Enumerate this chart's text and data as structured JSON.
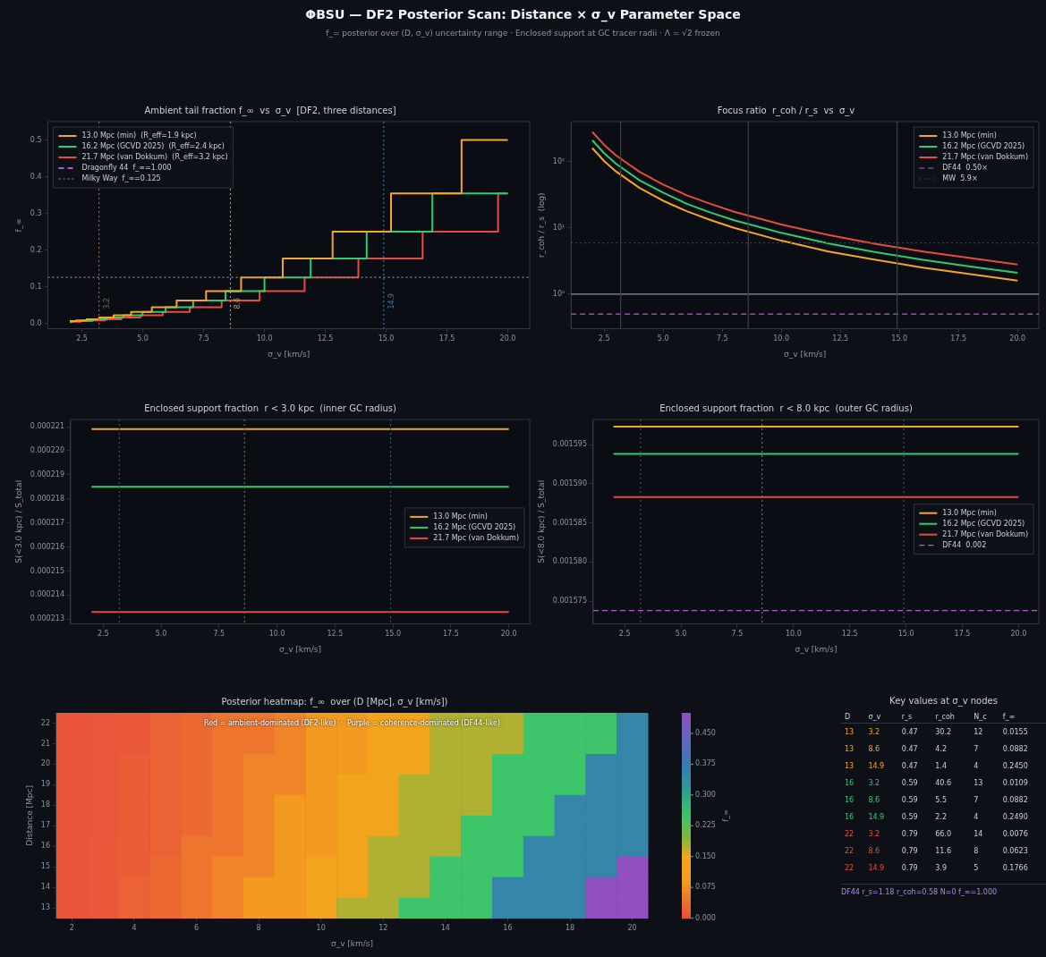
{
  "chart_data": [
    {
      "type": "other",
      "title": "ΦBSU — DF2 Posterior Scan: Distance × σ_v Parameter Space",
      "subtitle": "f_= posterior over (D, σ_v) uncertainty range  ·  Enclosed support at GC tracer radii  ·  Λ = √2 frozen"
    },
    {
      "type": "step",
      "title": "Ambient tail fraction f_∞  vs  σ_v  [DF2, three distances]",
      "xlabel": "σ_v [km/s]",
      "ylabel": "f_∞",
      "xlim": [
        1.1,
        20.9
      ],
      "xticks": [
        2.5,
        {
          "value": 5,
          "label": "5.0"
        },
        7.5,
        {
          "value": 10,
          "label": "10.0"
        },
        12.5,
        {
          "value": 15,
          "label": "15.0"
        },
        17.5,
        {
          "value": 20,
          "label": "20.0"
        }
      ],
      "ylim": [
        -0.015,
        0.55
      ],
      "yticks": [
        {
          "value": 0,
          "label": "0.0"
        },
        0.1,
        0.2,
        0.3,
        0.4,
        0.5
      ],
      "legend": "top left",
      "series": [
        {
          "name": "13.0 Mpc (min)  (R_eff=1.9 kpc)",
          "color": "#f5a623",
          "x": [
            2,
            2.26,
            2.69,
            3.2,
            3.8,
            4.52,
            5.37,
            6.39,
            7.6,
            9.04,
            10.75,
            12.8,
            15.2,
            18.1,
            20
          ],
          "values": [
            0.006,
            0.008,
            0.011,
            0.016,
            0.022,
            0.031,
            0.044,
            0.062,
            0.088,
            0.125,
            0.177,
            0.25,
            0.354,
            0.5,
            0.5
          ]
        },
        {
          "name": "16.2 Mpc (GCVD 2025)  (R_eff=2.4 kpc)",
          "color": "#2ecc71",
          "x": [
            2,
            2.1,
            2.49,
            2.97,
            3.53,
            4.2,
            4.99,
            5.94,
            7.07,
            8.4,
            10.0,
            11.9,
            14.2,
            16.9,
            20
          ],
          "values": [
            0.004,
            0.006,
            0.008,
            0.011,
            0.016,
            0.022,
            0.031,
            0.044,
            0.062,
            0.088,
            0.125,
            0.177,
            0.25,
            0.354,
            0.354
          ]
        },
        {
          "name": "21.7 Mpc (van Dokkum)  (R_eff=3.2 kpc)",
          "color": "#e74c3c",
          "x": [
            2,
            2.06,
            2.45,
            2.91,
            3.46,
            4.12,
            4.9,
            5.82,
            6.93,
            8.24,
            9.8,
            11.65,
            13.86,
            16.5,
            19.6,
            20
          ],
          "values": [
            0.003,
            0.004,
            0.006,
            0.008,
            0.011,
            0.016,
            0.022,
            0.031,
            0.044,
            0.062,
            0.088,
            0.125,
            0.177,
            0.25,
            0.354,
            0.354
          ]
        },
        {
          "name": "Dragonfly 44  f_∞=1.000",
          "color": "#b05fc8",
          "line_style": "dashed"
        }
      ],
      "ref_lines": [
        {
          "axis": "y",
          "value": 0.125,
          "label": "Milky Way  f_∞=0.125",
          "color": "#8b949e",
          "line_style": "dotted"
        },
        {
          "axis": "x",
          "value": 3.2,
          "label": "3.2",
          "color": "#8a6a5a",
          "line_style": "dotted"
        },
        {
          "axis": "x",
          "value": 8.6,
          "label": "8.6",
          "color": "#c89a40",
          "line_style": "dotted"
        },
        {
          "axis": "x",
          "value": 14.9,
          "label": "14.9",
          "color": "#3b7ca8",
          "line_style": "dotted"
        }
      ]
    },
    {
      "type": "line",
      "title": "Focus ratio  r_coh / r_s  vs  σ_v",
      "xlabel": "σ_v [km/s]",
      "ylabel": "r_coh / r_s  (log)",
      "log": "y",
      "xlim": [
        1.1,
        20.9
      ],
      "xticks": [
        2.5,
        {
          "value": 5,
          "label": "5.0"
        },
        7.5,
        {
          "value": 10,
          "label": "10.0"
        },
        12.5,
        {
          "value": 15,
          "label": "15.0"
        },
        17.5,
        {
          "value": 20,
          "label": "20.0"
        }
      ],
      "ylim": [
        0.3,
        400
      ],
      "yticks": [
        {
          "value": 1,
          "label": "10⁰"
        },
        {
          "value": 10,
          "label": "10¹"
        },
        {
          "value": 100,
          "label": "10²"
        }
      ],
      "legend": "top right",
      "x": [
        2,
        2.5,
        3,
        4,
        5,
        6,
        7,
        8,
        10,
        12,
        14,
        16,
        18,
        20
      ],
      "series": [
        {
          "name": "13.0 Mpc (min)",
          "color": "#f5a623",
          "values": [
            160,
            102,
            71,
            40,
            25.6,
            17.8,
            13.1,
            10,
            6.4,
            4.4,
            3.3,
            2.5,
            2.0,
            1.6
          ]
        },
        {
          "name": "16.2 Mpc (GCVD 2025)",
          "color": "#2ecc71",
          "values": [
            210,
            134,
            93,
            52,
            34,
            23,
            17,
            13,
            8.4,
            5.8,
            4.3,
            3.3,
            2.6,
            2.1
          ]
        },
        {
          "name": "21.7 Mpc (van Dokkum)",
          "color": "#e74c3c",
          "values": [
            280,
            179,
            124,
            70,
            45,
            31,
            23,
            17.5,
            11.2,
            7.8,
            5.7,
            4.4,
            3.5,
            2.8
          ]
        }
      ],
      "ref_lines": [
        {
          "axis": "y",
          "value": 0.5,
          "label": "DF44  0.50×",
          "color": "#b05fc8",
          "line_style": "dashed"
        },
        {
          "axis": "y",
          "value": 5.9,
          "label": "MW  5.9×",
          "color": "#3a424c",
          "line_style": "dotted"
        },
        {
          "axis": "y",
          "value": 1,
          "color": "#8b949e",
          "line_style": "solid"
        },
        {
          "axis": "x",
          "value": 3.2,
          "color": "#3a424c",
          "line_style": "solid"
        },
        {
          "axis": "x",
          "value": 8.6,
          "color": "#3a424c",
          "line_style": "solid"
        },
        {
          "axis": "x",
          "value": 14.9,
          "color": "#3a424c",
          "line_style": "solid"
        }
      ]
    },
    {
      "type": "line",
      "title": "Enclosed support fraction  r < 3.0 kpc  (inner GC radius)",
      "xlabel": "σ_v [km/s]",
      "ylabel": "S(<3.0 kpc) / S_total",
      "xlim": [
        1.1,
        20.9
      ],
      "xticks": [
        2.5,
        {
          "value": 5,
          "label": "5.0"
        },
        7.5,
        {
          "value": 10,
          "label": "10.0"
        },
        12.5,
        {
          "value": 15,
          "label": "15.0"
        },
        17.5,
        {
          "value": 20,
          "label": "20.0"
        }
      ],
      "ylim": [
        0.0002128,
        0.0002213
      ],
      "yticks": [
        0.000213,
        0.000214,
        0.000215,
        0.000216,
        0.000217,
        0.000218,
        0.000219,
        {
          "value": 0.00022,
          "label": "0.000220"
        },
        0.000221
      ],
      "legend": "center right",
      "x": [
        2,
        20
      ],
      "series": [
        {
          "name": "13.0 Mpc (min)",
          "color": "#f5a623",
          "values": [
            0.0002209,
            0.0002209
          ]
        },
        {
          "name": "16.2 Mpc (GCVD 2025)",
          "color": "#2ecc71",
          "values": [
            0.0002185,
            0.0002185
          ]
        },
        {
          "name": "21.7 Mpc (van Dokkum)",
          "color": "#e74c3c",
          "values": [
            0.0002133,
            0.0002133
          ]
        }
      ],
      "ref_lines": [
        {
          "axis": "x",
          "value": 3.2,
          "color": "#5a4a44",
          "line_style": "dotted"
        },
        {
          "axis": "x",
          "value": 8.6,
          "color": "#8a6a30",
          "line_style": "dotted"
        },
        {
          "axis": "x",
          "value": 14.9,
          "color": "#2e5a7a",
          "line_style": "dotted"
        }
      ]
    },
    {
      "type": "line",
      "title": "Enclosed support fraction  r < 8.0 kpc  (outer GC radius)",
      "xlabel": "σ_v [km/s]",
      "ylabel": "S(<8.0 kpc) / S_total",
      "xlim": [
        1.1,
        20.9
      ],
      "xticks": [
        2.5,
        {
          "value": 5,
          "label": "5.0"
        },
        7.5,
        {
          "value": 10,
          "label": "10.0"
        },
        12.5,
        {
          "value": 15,
          "label": "15.0"
        },
        17.5,
        {
          "value": 20,
          "label": "20.0"
        }
      ],
      "ylim": [
        0.0015721,
        0.0015982
      ],
      "yticks": [
        0.001575,
        {
          "value": 0.00158,
          "label": "0.001580"
        },
        0.001585,
        {
          "value": 0.00159,
          "label": "0.001590"
        },
        0.001595
      ],
      "legend": "center right",
      "x": [
        2,
        20
      ],
      "series": [
        {
          "name": "13.0 Mpc (min)",
          "color": "#f5a623",
          "values": [
            0.0015973,
            0.0015973
          ]
        },
        {
          "name": "16.2 Mpc (GCVD 2025)",
          "color": "#2ecc71",
          "values": [
            0.0015938,
            0.0015938
          ]
        },
        {
          "name": "21.7 Mpc (van Dokkum)",
          "color": "#e74c3c",
          "values": [
            0.0015883,
            0.0015883
          ]
        }
      ],
      "ref_lines": [
        {
          "axis": "y",
          "value": 0.0015738,
          "label": "DF44  0.002",
          "color": "#b05fc8",
          "line_style": "dashed"
        },
        {
          "axis": "x",
          "value": 3.2,
          "color": "#5a4a44",
          "line_style": "dotted"
        },
        {
          "axis": "x",
          "value": 8.6,
          "color": "#8a6a30",
          "line_style": "dotted"
        },
        {
          "axis": "x",
          "value": 14.9,
          "color": "#2e5a7a",
          "line_style": "dotted"
        }
      ]
    },
    {
      "type": "heatmap",
      "title": "Posterior heatmap: f_∞  over (D [Mpc], σ_v [km/s])",
      "xlabel": "σ_v [km/s]",
      "ylabel": "Distance [Mpc]",
      "clabel": "f_∞",
      "clim": [
        0,
        0.5
      ],
      "cticks": [
        {
          "value": 0,
          "label": "0.000"
        },
        0.075,
        {
          "value": 0.15,
          "label": "0.150"
        },
        0.225,
        {
          "value": 0.3,
          "label": "0.300"
        },
        0.375,
        {
          "value": 0.45,
          "label": "0.450"
        }
      ],
      "categories": [
        "2",
        null,
        "4",
        null,
        "6",
        null,
        "8",
        null,
        "10",
        null,
        "12",
        null,
        "14",
        null,
        "16",
        null,
        "18",
        null,
        "20"
      ],
      "y_categories": [
        "22",
        "21",
        "20",
        "19",
        "18",
        "17",
        "16",
        "15",
        "14",
        "13"
      ],
      "cells": [
        [
          0.006,
          0.008,
          0.011,
          0.022,
          0.031,
          0.044,
          0.044,
          0.062,
          0.088,
          0.088,
          0.125,
          0.125,
          0.177,
          0.177,
          0.177,
          0.25,
          0.25,
          0.25,
          0.354
        ],
        [
          0.006,
          0.008,
          0.011,
          0.022,
          0.031,
          0.044,
          0.044,
          0.062,
          0.088,
          0.088,
          0.125,
          0.125,
          0.177,
          0.177,
          0.177,
          0.25,
          0.25,
          0.25,
          0.354
        ],
        [
          0.006,
          0.008,
          0.016,
          0.022,
          0.031,
          0.044,
          0.062,
          0.062,
          0.088,
          0.088,
          0.125,
          0.125,
          0.177,
          0.177,
          0.25,
          0.25,
          0.25,
          0.354,
          0.354
        ],
        [
          0.006,
          0.008,
          0.016,
          0.022,
          0.031,
          0.044,
          0.062,
          0.062,
          0.088,
          0.125,
          0.125,
          0.177,
          0.177,
          0.177,
          0.25,
          0.25,
          0.25,
          0.354,
          0.354
        ],
        [
          0.006,
          0.008,
          0.016,
          0.022,
          0.031,
          0.044,
          0.062,
          0.088,
          0.088,
          0.125,
          0.125,
          0.177,
          0.177,
          0.177,
          0.25,
          0.25,
          0.354,
          0.354,
          0.354
        ],
        [
          0.006,
          0.008,
          0.016,
          0.022,
          0.031,
          0.044,
          0.062,
          0.088,
          0.088,
          0.125,
          0.125,
          0.177,
          0.177,
          0.25,
          0.25,
          0.25,
          0.354,
          0.354,
          0.354
        ],
        [
          0.006,
          0.011,
          0.016,
          0.022,
          0.044,
          0.044,
          0.062,
          0.088,
          0.088,
          0.125,
          0.177,
          0.177,
          0.177,
          0.25,
          0.25,
          0.354,
          0.354,
          0.354,
          0.354
        ],
        [
          0.006,
          0.011,
          0.016,
          0.031,
          0.044,
          0.062,
          0.062,
          0.088,
          0.125,
          0.125,
          0.177,
          0.177,
          0.25,
          0.25,
          0.25,
          0.354,
          0.354,
          0.354,
          0.5
        ],
        [
          0.006,
          0.011,
          0.022,
          0.031,
          0.044,
          0.062,
          0.088,
          0.088,
          0.125,
          0.125,
          0.177,
          0.177,
          0.25,
          0.25,
          0.354,
          0.354,
          0.354,
          0.5,
          0.5
        ],
        [
          0.006,
          0.011,
          0.022,
          0.031,
          0.044,
          0.062,
          0.088,
          0.088,
          0.125,
          0.177,
          0.177,
          0.25,
          0.25,
          0.25,
          0.354,
          0.354,
          0.354,
          0.5,
          0.5
        ]
      ],
      "annotations": [
        "Red = ambient-dominated (DF2-like)  ·  Purple = coherence-dominated (DF44-like)"
      ]
    },
    {
      "type": "other",
      "title": "Key values at σ_v nodes",
      "categories": [
        "D",
        "σ_v",
        "r_s",
        "r_coh",
        "N_c",
        "f_∞"
      ],
      "cell_labels": [
        [
          "13",
          "3.2",
          "0.47",
          "30.2",
          "12",
          "0.0155"
        ],
        [
          "13",
          "8.6",
          "0.47",
          "4.2",
          "7",
          "0.0882"
        ],
        [
          "13",
          "14.9",
          "0.47",
          "1.4",
          "4",
          "0.2450"
        ],
        [
          "16",
          "3.2",
          "0.59",
          "40.6",
          "13",
          "0.0109"
        ],
        [
          "16",
          "8.6",
          "0.59",
          "5.5",
          "7",
          "0.0882"
        ],
        [
          "16",
          "14.9",
          "0.59",
          "2.2",
          "4",
          "0.2490"
        ],
        [
          "22",
          "3.2",
          "0.79",
          "66.0",
          "14",
          "0.0076"
        ],
        [
          "22",
          "8.6",
          "0.79",
          "11.6",
          "8",
          "0.0623"
        ],
        [
          "22",
          "14.9",
          "0.79",
          "3.9",
          "5",
          "0.1766"
        ]
      ],
      "colors": [
        "#f5a623",
        "#f5a623",
        "#f5a623",
        "#2ecc71",
        "#2ecc71",
        "#2ecc71",
        "#e74c3c",
        "#e74c3c",
        "#e74c3c"
      ],
      "annotations": [
        "DF44  r_s=1.18  r_coh=0.58  N=0  f_∞=1.000"
      ]
    }
  ]
}
